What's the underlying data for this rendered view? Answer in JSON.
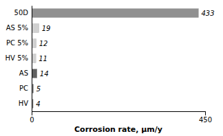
{
  "chart_data": {
    "type": "bar",
    "orientation": "horizontal",
    "categories": [
      "50D",
      "AS 5%",
      "PC 5%",
      "HV 5%",
      "AS",
      "PC",
      "HV"
    ],
    "values": [
      433,
      19,
      12,
      11,
      14,
      5,
      4
    ],
    "colors": [
      "#909090",
      "#d0d0d0",
      "#d0d0d0",
      "#d0d0d0",
      "#606060",
      "#808080",
      "#808080"
    ],
    "data_labels": true,
    "xlabel": "Corrosion rate, μm/y",
    "xlim": [
      0,
      450
    ],
    "xticks": [
      0,
      450
    ],
    "grid": false
  }
}
